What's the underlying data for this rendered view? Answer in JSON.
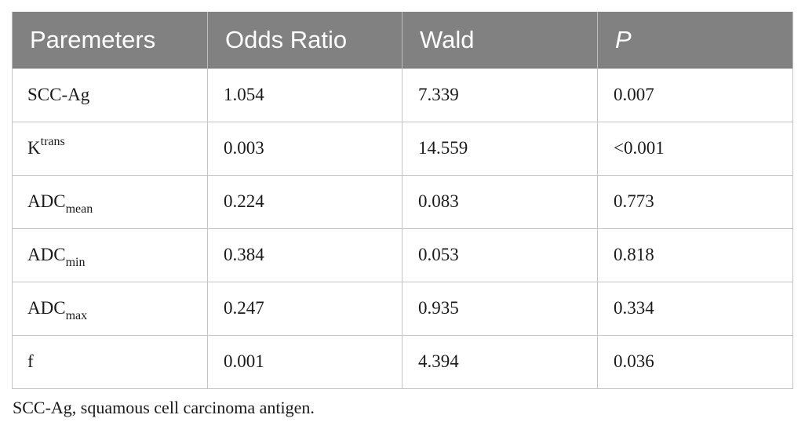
{
  "table": {
    "headers": [
      "Paremeters",
      "Odds Ratio",
      "Wald",
      "P"
    ],
    "rows": [
      {
        "param_base": "SCC-Ag",
        "param_sup": "",
        "param_sub": "",
        "odds_ratio": "1.054",
        "wald": "7.339",
        "p": "0.007"
      },
      {
        "param_base": "K",
        "param_sup": "trans",
        "param_sub": "",
        "odds_ratio": "0.003",
        "wald": "14.559",
        "p": "<0.001"
      },
      {
        "param_base": "ADC",
        "param_sup": "",
        "param_sub": "mean",
        "odds_ratio": "0.224",
        "wald": "0.083",
        "p": "0.773"
      },
      {
        "param_base": "ADC",
        "param_sup": "",
        "param_sub": "min",
        "odds_ratio": "0.384",
        "wald": "0.053",
        "p": "0.818"
      },
      {
        "param_base": "ADC",
        "param_sup": "",
        "param_sub": "max",
        "odds_ratio": "0.247",
        "wald": "0.935",
        "p": "0.334"
      },
      {
        "param_base": "f",
        "param_sup": "",
        "param_sub": "",
        "odds_ratio": "0.001",
        "wald": "4.394",
        "p": "0.036"
      }
    ]
  },
  "footnote": "SCC-Ag, squamous cell carcinoma antigen."
}
